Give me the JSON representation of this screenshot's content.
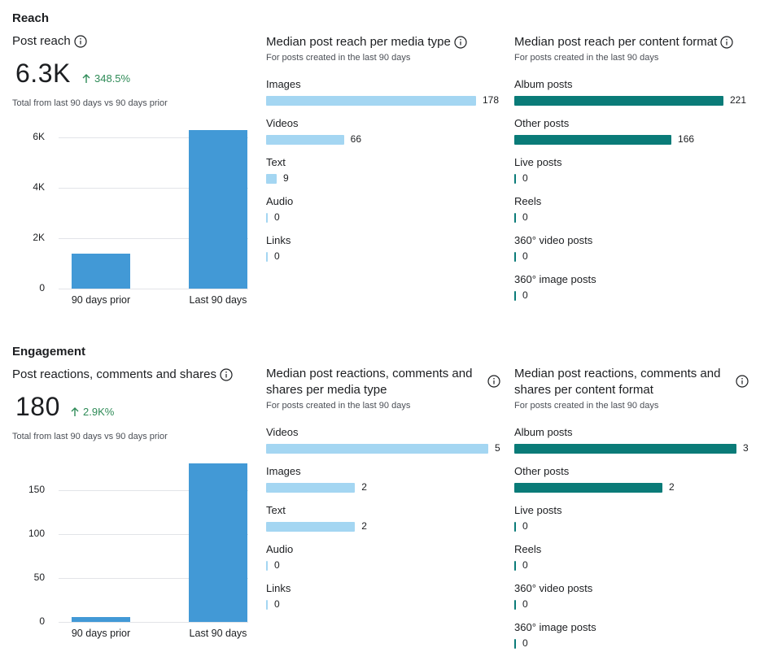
{
  "reach": {
    "section_title": "Reach",
    "post_reach": {
      "title": "Post reach",
      "value": "6.3K",
      "delta": "348.5%",
      "caption": "Total from last 90 days vs 90 days prior",
      "chart_data": {
        "type": "bar",
        "categories": [
          "90 days prior",
          "Last 90 days"
        ],
        "values": [
          1400,
          6300
        ],
        "ylim": [
          0,
          6300
        ],
        "yticks": [
          "0",
          "2K",
          "4K",
          "6K"
        ],
        "ytick_values": [
          0,
          2000,
          4000,
          6000
        ]
      }
    },
    "media_type": {
      "title": "Median post reach per media type",
      "subtitle": "For posts created in the last 90 days",
      "chart_data": {
        "type": "bar",
        "orientation": "horizontal",
        "color": "#a4d6f2",
        "categories": [
          "Images",
          "Videos",
          "Text",
          "Audio",
          "Links"
        ],
        "values": [
          178,
          66,
          9,
          0,
          0
        ],
        "labels": [
          "178",
          "66",
          "9",
          "0",
          "0"
        ]
      }
    },
    "content_format": {
      "title": "Median post reach per content format",
      "subtitle": "For posts created in the last 90 days",
      "chart_data": {
        "type": "bar",
        "orientation": "horizontal",
        "color": "#0a7b78",
        "categories": [
          "Album posts",
          "Other posts",
          "Live posts",
          "Reels",
          "360° video posts",
          "360° image posts"
        ],
        "values": [
          221,
          166,
          0,
          0,
          0,
          0
        ],
        "labels": [
          "221",
          "166",
          "0",
          "0",
          "0",
          "0"
        ]
      }
    }
  },
  "engagement": {
    "section_title": "Engagement",
    "prcs": {
      "title": "Post reactions, comments and shares",
      "value": "180",
      "delta": "2.9K%",
      "caption": "Total from last 90 days vs 90 days prior",
      "chart_data": {
        "type": "bar",
        "categories": [
          "90 days prior",
          "Last 90 days"
        ],
        "values": [
          6,
          180
        ],
        "ylim": [
          0,
          180
        ],
        "yticks": [
          "0",
          "50",
          "100",
          "150"
        ],
        "ytick_values": [
          0,
          50,
          100,
          150
        ]
      }
    },
    "media_type": {
      "title": "Median post reactions, comments and shares per media type",
      "subtitle": "For posts created in the last 90 days",
      "chart_data": {
        "type": "bar",
        "orientation": "horizontal",
        "color": "#a4d6f2",
        "categories": [
          "Videos",
          "Images",
          "Text",
          "Audio",
          "Links"
        ],
        "values": [
          5,
          2,
          2,
          0,
          0
        ],
        "labels": [
          "5",
          "2",
          "2",
          "0",
          "0"
        ]
      }
    },
    "content_format": {
      "title": "Median post reactions, comments and shares per content format",
      "subtitle": "For posts created in the last 90 days",
      "chart_data": {
        "type": "bar",
        "orientation": "horizontal",
        "color": "#0a7b78",
        "categories": [
          "Album posts",
          "Other posts",
          "Live posts",
          "Reels",
          "360° video posts",
          "360° image posts"
        ],
        "values": [
          3,
          2,
          0,
          0,
          0,
          0
        ],
        "labels": [
          "3",
          "2",
          "0",
          "0",
          "0",
          "0"
        ]
      }
    }
  }
}
